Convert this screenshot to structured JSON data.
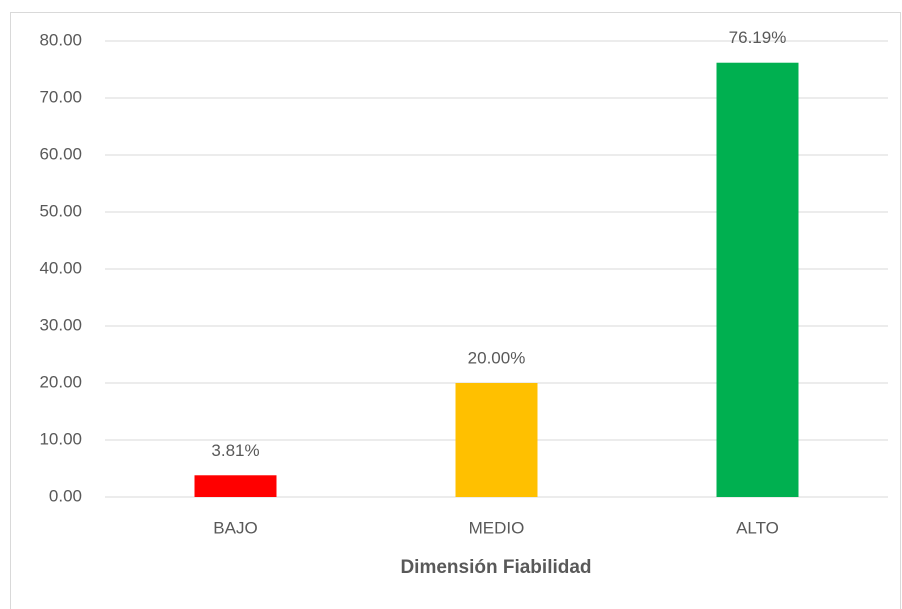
{
  "chart_data": {
    "type": "bar",
    "x_label": "Dimensión Fiabilidad",
    "categories": [
      "BAJO",
      "MEDIO",
      "ALTO"
    ],
    "values": [
      3.81,
      20.0,
      76.19
    ],
    "value_labels": [
      "3.81%",
      "20.00%",
      "76.19%"
    ],
    "colors": [
      "#ff0000",
      "#ffc000",
      "#00b050"
    ],
    "ylim": [
      0,
      80
    ],
    "yticks": [
      {
        "value": 0,
        "label": "0.00"
      },
      {
        "value": 10,
        "label": "10.00"
      },
      {
        "value": 20,
        "label": "20.00"
      },
      {
        "value": 30,
        "label": "30.00"
      },
      {
        "value": 40,
        "label": "40.00"
      },
      {
        "value": 50,
        "label": "50.00"
      },
      {
        "value": 60,
        "label": "60.00"
      },
      {
        "value": 70,
        "label": "70.00"
      },
      {
        "value": 80,
        "label": "80.00"
      }
    ],
    "grid": true
  }
}
